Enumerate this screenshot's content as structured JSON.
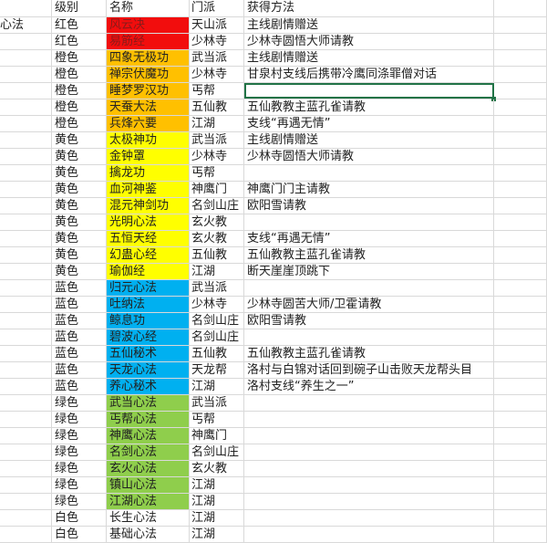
{
  "sheet": {
    "headers": {
      "category": "",
      "grade": "级别",
      "name": "名称",
      "sect": "门派",
      "method": "获得方法"
    },
    "category_label": "心法",
    "colors": {
      "红色": "#f20d0d",
      "橙色": "#ffc000",
      "黄色": "#ffff00",
      "蓝色": "#00b0f0",
      "绿色": "#8fce4c",
      "白色": "#ffffff"
    },
    "name_text_colors": {
      "红色": "#8a1a1a"
    },
    "selected_row_index": 4,
    "rows": [
      {
        "grade": "红色",
        "name": "风云决",
        "sect": "天山派",
        "method": "主线剧情赠送"
      },
      {
        "grade": "红色",
        "name": "易筋经",
        "sect": "少林寺",
        "method": "少林寺圆悟大师请教"
      },
      {
        "grade": "橙色",
        "name": "四象无极功",
        "sect": "武当派",
        "method": "主线剧情赠送"
      },
      {
        "grade": "橙色",
        "name": "禅宗伏魔功",
        "sect": "少林寺",
        "method": "甘泉村支线后携带冷鹰同涤罪僧对话"
      },
      {
        "grade": "橙色",
        "name": "睡梦罗汉功",
        "sect": "丐帮",
        "method": ""
      },
      {
        "grade": "橙色",
        "name": "天蚕大法",
        "sect": "五仙教",
        "method": "五仙教教主蓝孔雀请教"
      },
      {
        "grade": "橙色",
        "name": "兵烽六要",
        "sect": "江湖",
        "method": "支线“再遇无情”"
      },
      {
        "grade": "黄色",
        "name": "太极神功",
        "sect": "武当派",
        "method": "主线剧情赠送"
      },
      {
        "grade": "黄色",
        "name": "金钟罩",
        "sect": "少林寺",
        "method": "少林寺圆悟大师请教"
      },
      {
        "grade": "黄色",
        "name": "擒龙功",
        "sect": "丐帮",
        "method": ""
      },
      {
        "grade": "黄色",
        "name": "血河神鉴",
        "sect": "神鹰门",
        "method": "神鹰门门主请教"
      },
      {
        "grade": "黄色",
        "name": "混元神剑功",
        "sect": "名剑山庄",
        "method": "欧阳雪请教"
      },
      {
        "grade": "黄色",
        "name": "光明心法",
        "sect": "玄火教",
        "method": ""
      },
      {
        "grade": "黄色",
        "name": "五恒天经",
        "sect": "玄火教",
        "method": "支线“再遇无情”"
      },
      {
        "grade": "黄色",
        "name": "幻蛊心经",
        "sect": "五仙教",
        "method": "五仙教教主蓝孔雀请教"
      },
      {
        "grade": "黄色",
        "name": "瑜伽经",
        "sect": "江湖",
        "method": "断天崖崖顶跳下"
      },
      {
        "grade": "蓝色",
        "name": "归元心法",
        "sect": "武当派",
        "method": ""
      },
      {
        "grade": "蓝色",
        "name": "吐纳法",
        "sect": "少林寺",
        "method": "少林寺圆苦大师/卫霍请教"
      },
      {
        "grade": "蓝色",
        "name": "鲸息功",
        "sect": "名剑山庄",
        "method": "欧阳雪请教"
      },
      {
        "grade": "蓝色",
        "name": "碧波心经",
        "sect": "名剑山庄",
        "method": ""
      },
      {
        "grade": "蓝色",
        "name": "五仙秘术",
        "sect": "五仙教",
        "method": "五仙教教主蓝孔雀请教"
      },
      {
        "grade": "蓝色",
        "name": "天龙心法",
        "sect": "天龙帮",
        "method": "洛村与白锦对话回到碗子山击败天龙帮头目"
      },
      {
        "grade": "蓝色",
        "name": "养心秘术",
        "sect": "江湖",
        "method": "洛村支线“养生之一”"
      },
      {
        "grade": "绿色",
        "name": "武当心法",
        "sect": "武当派",
        "method": ""
      },
      {
        "grade": "绿色",
        "name": "丐帮心法",
        "sect": "丐帮",
        "method": ""
      },
      {
        "grade": "绿色",
        "name": "神鹰心法",
        "sect": "神鹰门",
        "method": ""
      },
      {
        "grade": "绿色",
        "name": "名剑心法",
        "sect": "名剑山庄",
        "method": ""
      },
      {
        "grade": "绿色",
        "name": "玄火心法",
        "sect": "玄火教",
        "method": ""
      },
      {
        "grade": "绿色",
        "name": "镇山心法",
        "sect": "江湖",
        "method": ""
      },
      {
        "grade": "绿色",
        "name": "江湖心法",
        "sect": "江湖",
        "method": ""
      },
      {
        "grade": "白色",
        "name": "长生心法",
        "sect": "江湖",
        "method": ""
      },
      {
        "grade": "白色",
        "name": "基础心法",
        "sect": "江湖",
        "method": ""
      }
    ]
  }
}
